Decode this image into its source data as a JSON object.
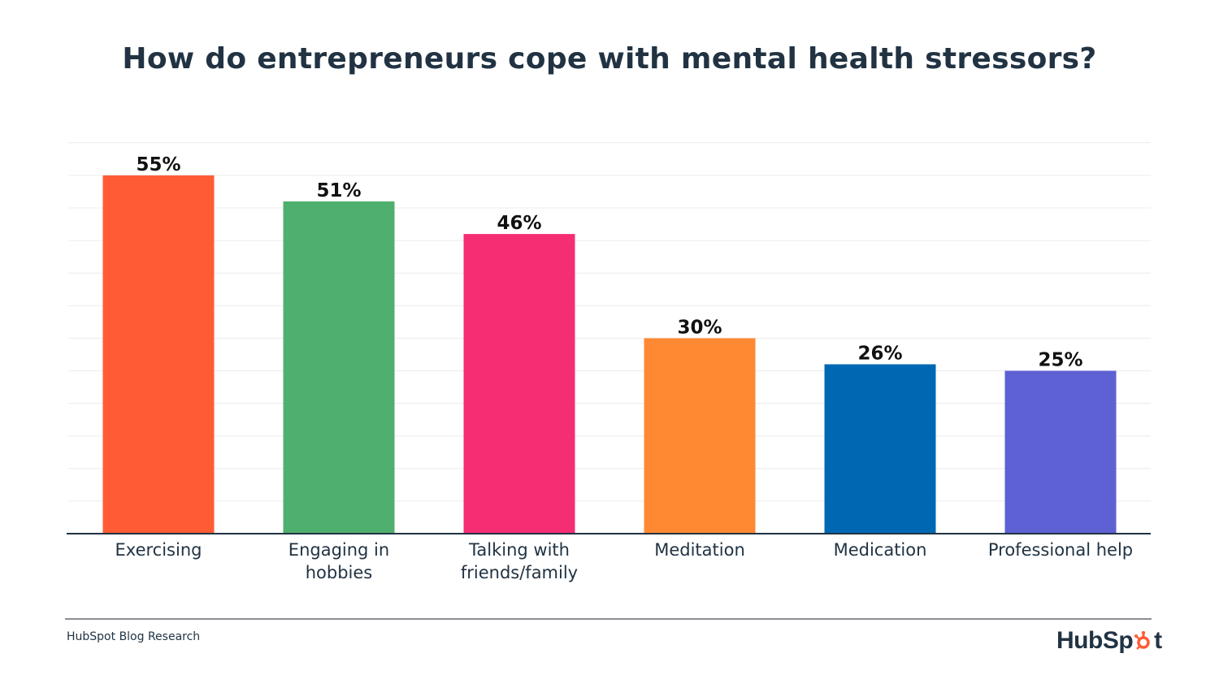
{
  "chart_data": {
    "type": "bar",
    "title": "How do entrepreneurs cope with mental health stressors?",
    "categories": [
      [
        "Exercising"
      ],
      [
        "Engaging in",
        "hobbies"
      ],
      [
        "Talking with",
        "friends/family"
      ],
      [
        "Meditation"
      ],
      [
        "Medication"
      ],
      [
        "Professional help"
      ]
    ],
    "values": [
      55,
      51,
      46,
      30,
      26,
      25
    ],
    "value_labels": [
      "55%",
      "51%",
      "46%",
      "30%",
      "26%",
      "25%"
    ],
    "colors": [
      "#FF5C35",
      "#4FAF6E",
      "#F52D73",
      "#FF8933",
      "#0068B2",
      "#5E61D3"
    ],
    "xlabel": "",
    "ylabel": "",
    "ylim": [
      0,
      60
    ],
    "grid": true,
    "legend": "none"
  },
  "footer": {
    "source": "HubSpot Blog Research",
    "logo_prefix": "HubSp",
    "logo_suffix": "t",
    "logo_accent": "#FF5C35"
  }
}
